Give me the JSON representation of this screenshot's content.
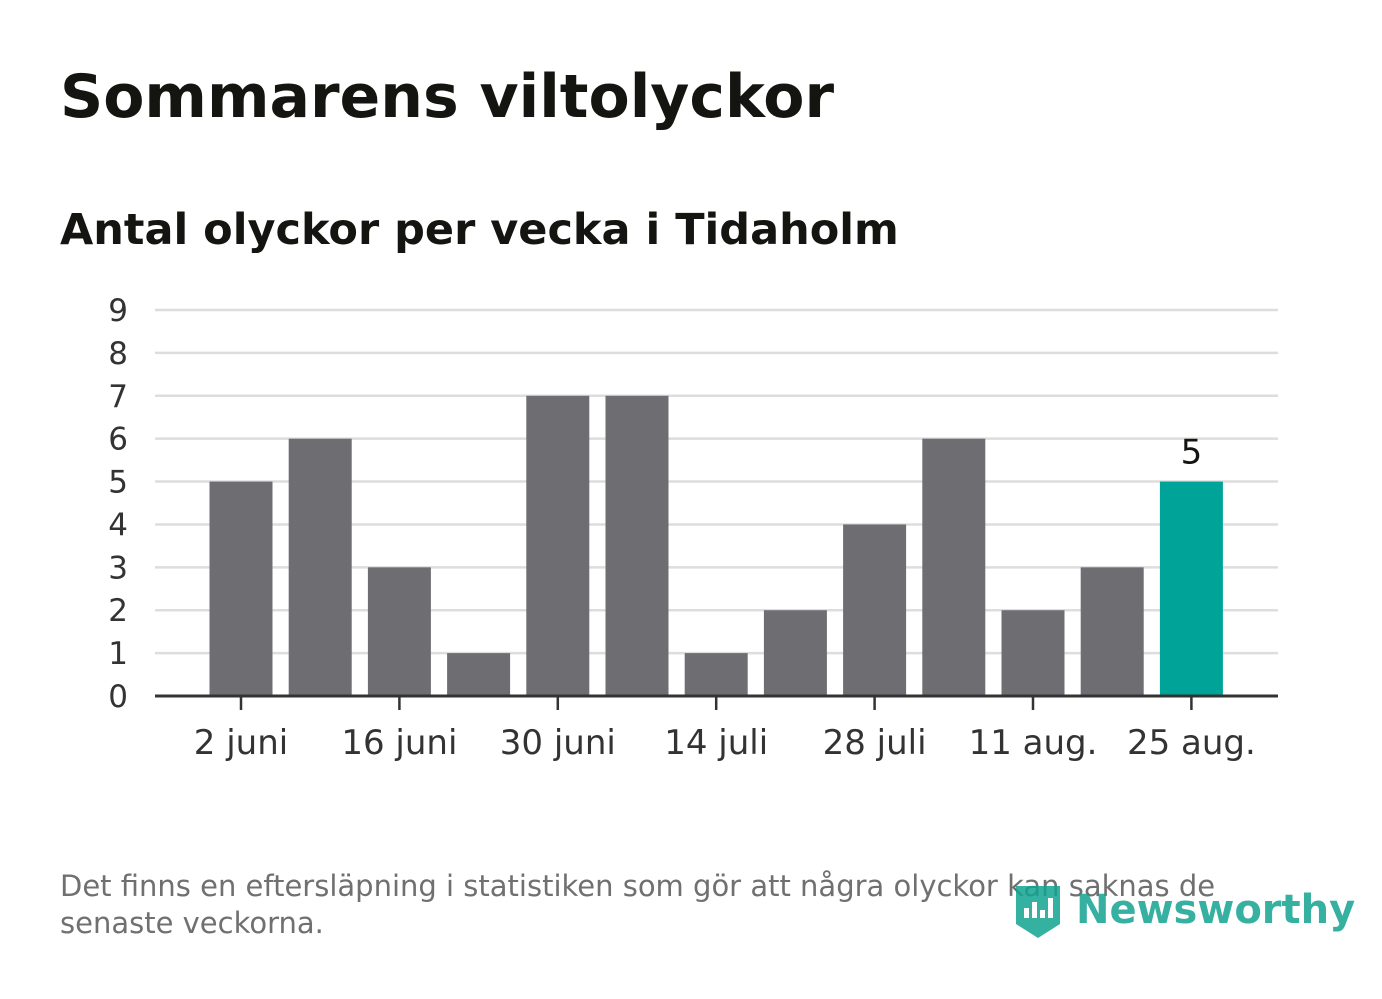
{
  "title": "Sommarens viltolyckor",
  "subtitle": "Antal olyckor per vecka i Tidaholm",
  "footnote": "Det finns en eftersläpning i statistiken som gör att några olyckor kan saknas de senaste veckorna.",
  "logo": {
    "text": "Newsworthy",
    "icon": "newsworthy-logo-icon"
  },
  "colors": {
    "bar": "#6e6d72",
    "highlight": "#00a398",
    "grid": "#dddddd",
    "axis": "#333333",
    "logo": "#12a391"
  },
  "chart_data": {
    "type": "bar",
    "title": "Sommarens viltolyckor",
    "subtitle": "Antal olyckor per vecka i Tidaholm",
    "xlabel": "",
    "ylabel": "",
    "ylim": [
      0,
      9
    ],
    "yticks": [
      0,
      1,
      2,
      3,
      4,
      5,
      6,
      7,
      8,
      9
    ],
    "grid": true,
    "categories": [
      "2 juni",
      "9 juni",
      "16 juni",
      "23 juni",
      "30 juni",
      "7 juli",
      "14 juli",
      "21 juli",
      "28 juli",
      "4 aug.",
      "11 aug.",
      "18 aug.",
      "25 aug."
    ],
    "values": [
      5,
      6,
      3,
      1,
      7,
      7,
      1,
      2,
      4,
      6,
      2,
      3,
      5
    ],
    "xtick_labels": [
      "2 juni",
      "16 juni",
      "30 juni",
      "14 juli",
      "28 juli",
      "11 aug.",
      "25 aug."
    ],
    "highlight": {
      "category": "25 aug.",
      "label": "5"
    }
  }
}
